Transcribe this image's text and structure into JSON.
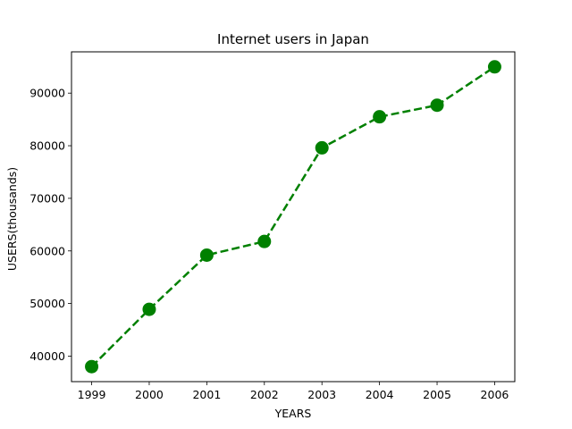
{
  "chart_data": {
    "type": "line",
    "title": "Internet users in Japan",
    "xlabel": "YEARS",
    "ylabel": "USERS(thousands)",
    "categories": [
      "1999",
      "2000",
      "2001",
      "2002",
      "2003",
      "2004",
      "2005",
      "2006"
    ],
    "series": [
      {
        "values": [
          38000,
          48900,
          59200,
          61800,
          79600,
          85500,
          87700,
          95000
        ],
        "color": "#008000",
        "line_style": "dashed",
        "marker": "circle"
      }
    ],
    "yticks": [
      40000,
      50000,
      60000,
      70000,
      80000,
      90000
    ],
    "ylim": [
      35150,
      97850
    ],
    "xlim": [
      1998.65,
      2006.35
    ],
    "grid": false,
    "legend": "none"
  }
}
